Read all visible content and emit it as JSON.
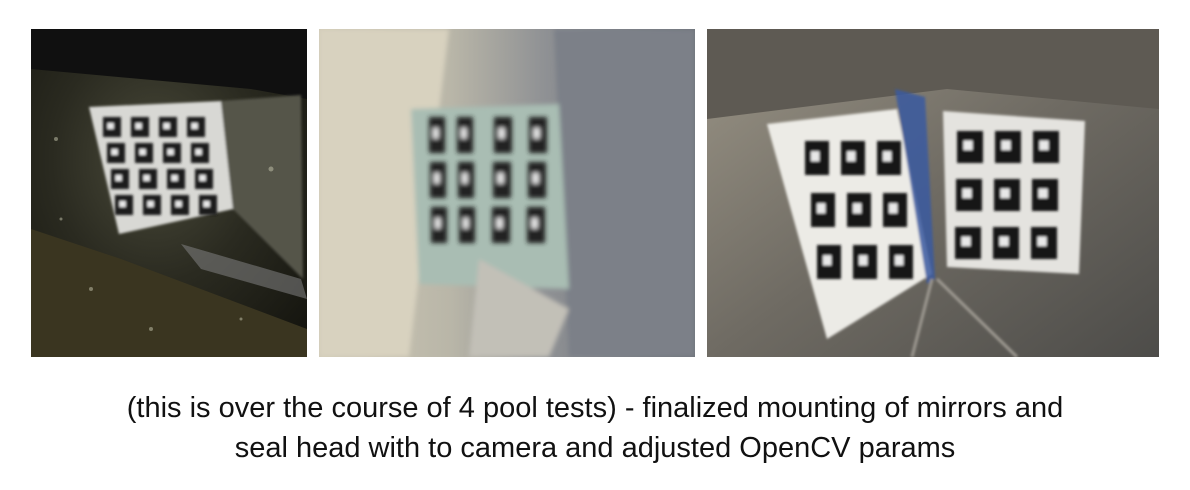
{
  "photos": [
    {
      "name": "pool-test-photo-1",
      "subject": "aruco-marker-board-underwater"
    },
    {
      "name": "pool-test-photo-2",
      "subject": "aruco-marker-board-in-mirror-mount"
    },
    {
      "name": "pool-test-photo-3",
      "subject": "aruco-marker-board-split-by-mirrors"
    }
  ],
  "caption": {
    "line1": "(this is over the course of 4 pool tests) - finalized mounting of mirrors and",
    "line2": "seal head with to camera and adjusted OpenCV params"
  }
}
